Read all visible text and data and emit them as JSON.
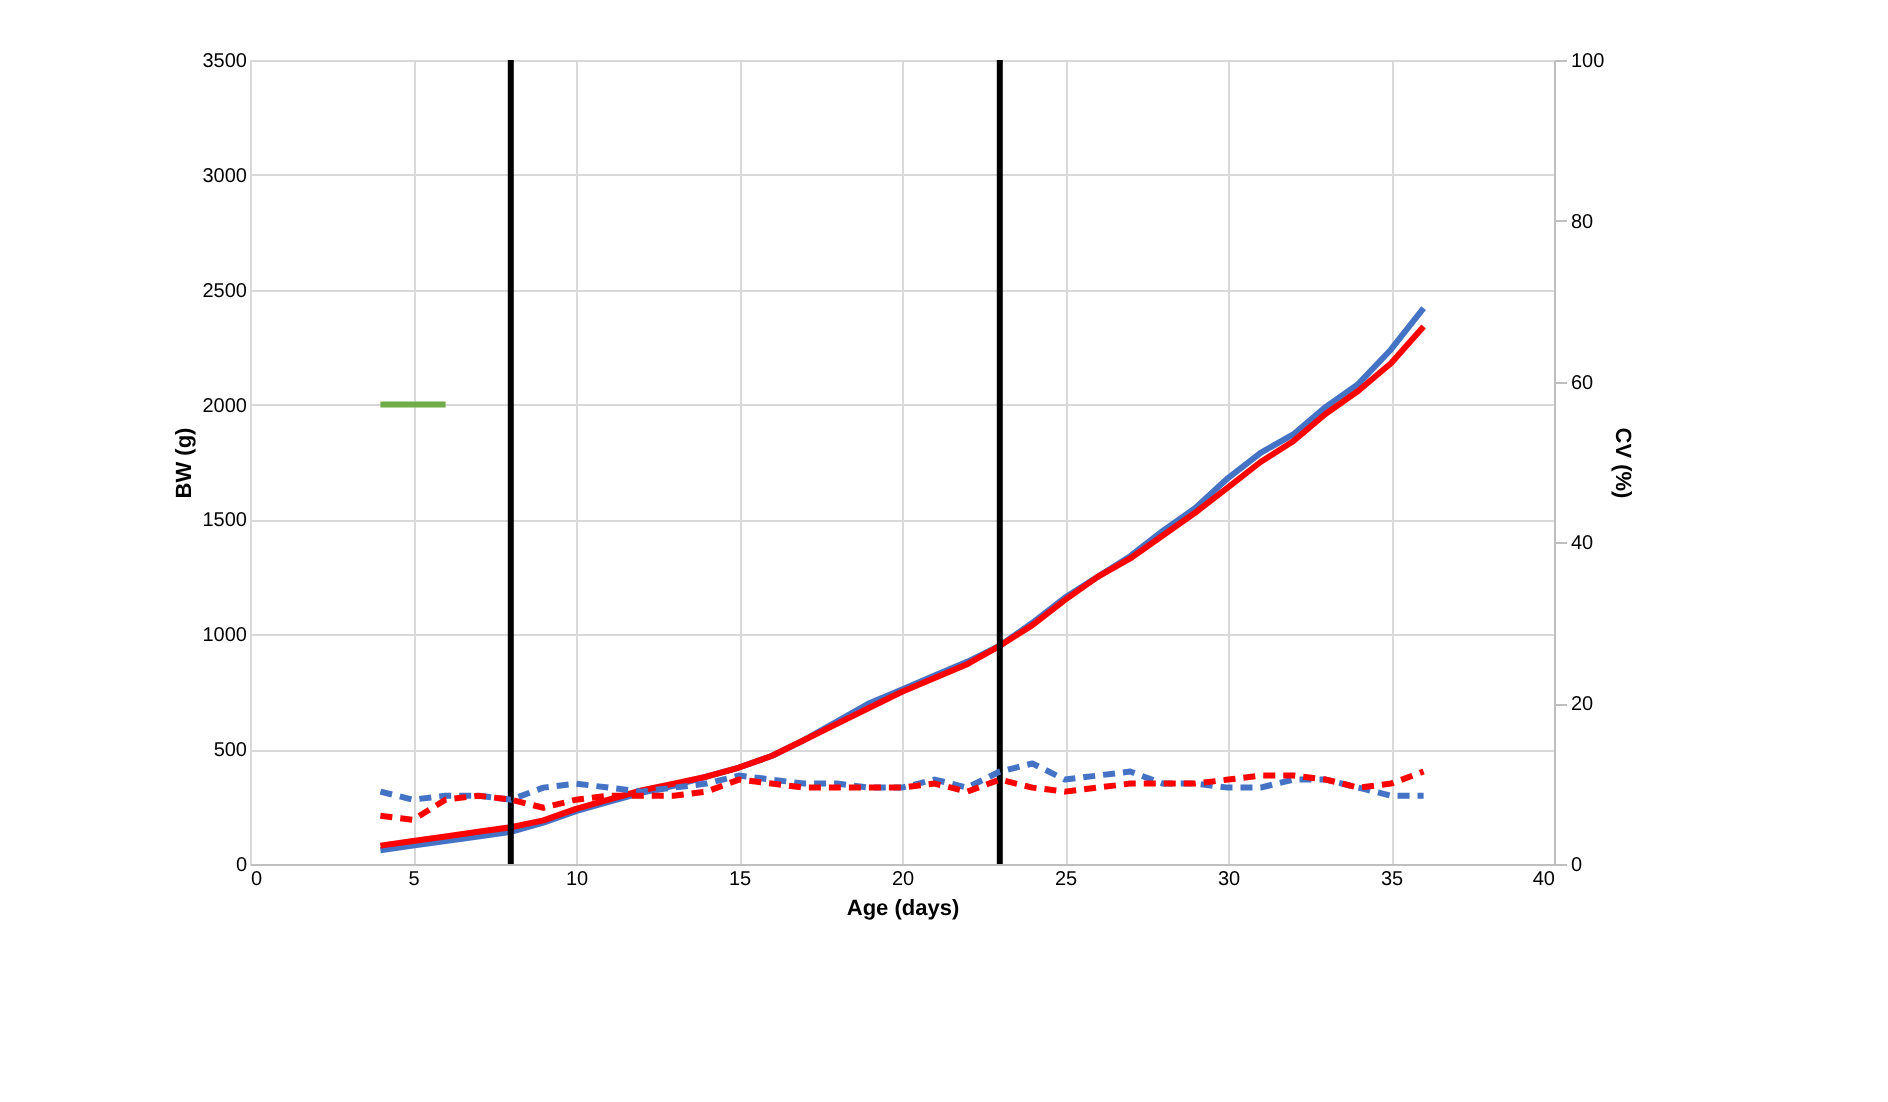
{
  "chart_data": {
    "type": "line",
    "xlabel": "Age (days)",
    "ylabel": "BW (g)",
    "y2label": "CV (%)",
    "xlim": [
      0,
      40
    ],
    "xticks": [
      0,
      5,
      10,
      15,
      20,
      25,
      30,
      35,
      40
    ],
    "ylim": [
      0,
      3500
    ],
    "yticks": [
      0,
      500,
      1000,
      1500,
      2000,
      2500,
      3000,
      3500
    ],
    "y2lim": [
      0,
      100
    ],
    "y2ticks": [
      0,
      20,
      40,
      60,
      80,
      100
    ],
    "grid": true,
    "marker": "none",
    "x": [
      4,
      5,
      6,
      7,
      8,
      9,
      10,
      11,
      12,
      13,
      14,
      15,
      16,
      17,
      18,
      19,
      20,
      21,
      22,
      23,
      24,
      25,
      26,
      27,
      28,
      29,
      30,
      31,
      32,
      33,
      34,
      35,
      36
    ],
    "series": [
      {
        "color": "#4472c4",
        "line_style": "solid",
        "values": [
          60,
          80,
          100,
          120,
          140,
          180,
          230,
          270,
          310,
          340,
          380,
          420,
          470,
          540,
          620,
          700,
          760,
          820,
          880,
          950,
          1050,
          1160,
          1250,
          1340,
          1450,
          1550,
          1680,
          1790,
          1870,
          1990,
          2090,
          2240,
          2420
        ]
      },
      {
        "color": "#ff0000",
        "line_style": "solid",
        "values": [
          80,
          100,
          120,
          140,
          160,
          190,
          240,
          280,
          320,
          350,
          380,
          420,
          470,
          540,
          610,
          680,
          750,
          810,
          870,
          950,
          1040,
          1150,
          1250,
          1330,
          1430,
          1530,
          1640,
          1750,
          1840,
          1960,
          2060,
          2180,
          2340
        ]
      },
      {
        "color": "#4472c4",
        "line_style": "dashed",
        "axis": "y2",
        "values": [
          9,
          8,
          8.5,
          8.5,
          8,
          9.5,
          10,
          9.5,
          9,
          9.5,
          10,
          11,
          10.5,
          10,
          10,
          9.5,
          9.5,
          10.5,
          9.5,
          11.5,
          12.5,
          10.5,
          11,
          11.5,
          10,
          10,
          9.5,
          9.5,
          10.5,
          10.5,
          9.5,
          8.5,
          8.5
        ]
      },
      {
        "color": "#ff0000",
        "line_style": "dashed",
        "axis": "y2",
        "values": [
          6,
          5.5,
          8,
          8.5,
          8,
          7,
          8,
          8.5,
          8.5,
          8.5,
          9,
          10.5,
          10,
          9.5,
          9.5,
          9.5,
          9.5,
          10,
          9,
          10.5,
          9.5,
          9,
          9.5,
          10,
          10,
          10,
          10.5,
          11,
          11,
          10.5,
          9.5,
          10,
          11.5
        ]
      },
      {
        "color": "#70ad47",
        "line_style": "solid",
        "x": [
          4,
          6
        ],
        "values": [
          2000,
          2000
        ]
      }
    ],
    "ref_lines": [
      {
        "axis": "x",
        "value": 8,
        "color": "#000000"
      },
      {
        "axis": "x",
        "value": 23,
        "color": "#000000"
      }
    ]
  }
}
